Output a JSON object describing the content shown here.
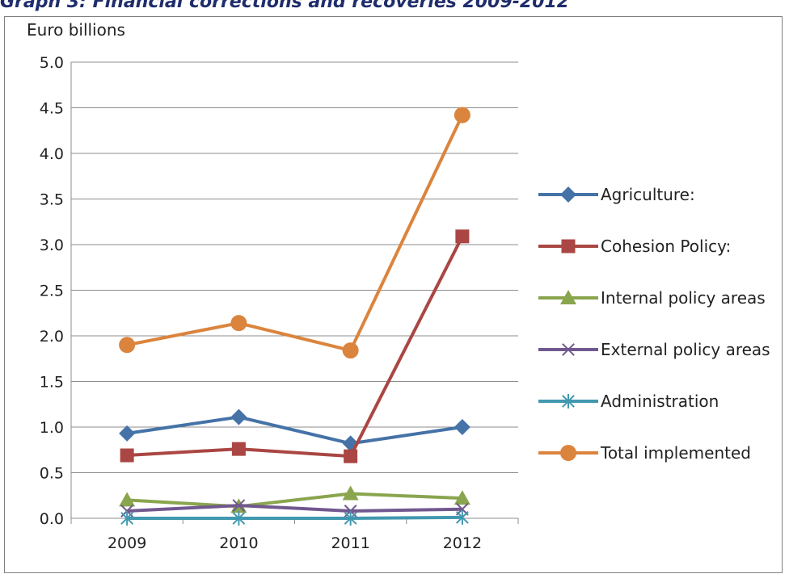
{
  "graph_title": "Graph 3: Financial corrections and recoveries 2009-2012",
  "chart_data": {
    "type": "line",
    "ylabel": "Euro billions",
    "x": [
      "2009",
      "2010",
      "2011",
      "2012"
    ],
    "ylim": [
      0,
      5
    ],
    "yticks": [
      "0.0",
      "0.5",
      "1.0",
      "1.5",
      "2.0",
      "2.5",
      "3.0",
      "3.5",
      "4.0",
      "4.5",
      "5.0"
    ],
    "grid": true,
    "legend_position": "right",
    "series": [
      {
        "name": "Agriculture:",
        "values": [
          0.93,
          1.11,
          0.82,
          1.0
        ],
        "color": "#4572a7",
        "marker": "diamond"
      },
      {
        "name": "Cohesion Policy:",
        "values": [
          0.69,
          0.76,
          0.68,
          3.09
        ],
        "color": "#aa4643",
        "marker": "square"
      },
      {
        "name": "Internal policy areas",
        "values": [
          0.2,
          0.13,
          0.27,
          0.22
        ],
        "color": "#89a54e",
        "marker": "triangle"
      },
      {
        "name": "External policy areas",
        "values": [
          0.08,
          0.14,
          0.08,
          0.1
        ],
        "color": "#71588f",
        "marker": "x"
      },
      {
        "name": "Administration",
        "values": [
          0.0,
          0.0,
          0.0,
          0.01
        ],
        "color": "#4198af",
        "marker": "star"
      },
      {
        "name": "Total implemented",
        "values": [
          1.9,
          2.14,
          1.84,
          4.42
        ],
        "color": "#db843d",
        "marker": "circle"
      }
    ]
  }
}
